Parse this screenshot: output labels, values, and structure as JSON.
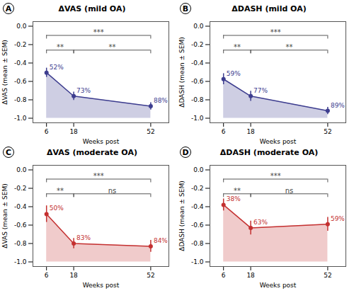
{
  "chart_data": [
    {
      "type": "line",
      "panel_label": "A",
      "title": "ΔVAS (mild OA)",
      "xlabel": "Weeks post",
      "ylabel": "ΔVAS (mean ± SEM)",
      "color": "#3d3d8f",
      "x": [
        6,
        18,
        52
      ],
      "values": [
        -0.505,
        -0.76,
        -0.87
      ],
      "errors": [
        0.05,
        0.045,
        0.04
      ],
      "point_labels": [
        "52%",
        "73%",
        "88%"
      ],
      "baseline": -1.0,
      "annotations": [
        {
          "x1": 6,
          "x2": 18,
          "y": -0.26,
          "text": "**"
        },
        {
          "x1": 18,
          "x2": 52,
          "y": -0.26,
          "text": "**"
        },
        {
          "x1": 6,
          "x2": 52,
          "y": -0.1,
          "text": "***"
        }
      ],
      "xlim": [
        0,
        60
      ],
      "xticks": [
        6,
        18,
        52
      ],
      "ylim": [
        -1.05,
        0.05
      ],
      "yticks": [
        {
          "value": 0.0,
          "label": "0.0"
        },
        {
          "value": -0.2,
          "label": "-0.2"
        },
        {
          "value": -0.4,
          "label": "-0.4"
        },
        {
          "value": -0.6,
          "label": "-0.6"
        },
        {
          "value": -0.8,
          "label": "-0.8"
        },
        {
          "value": -1.0,
          "label": "-1.0"
        }
      ]
    },
    {
      "type": "line",
      "panel_label": "B",
      "title": "ΔDASH (mild OA)",
      "xlabel": "Weeks post",
      "ylabel": "ΔDASH (mean ± SEM)",
      "color": "#3d3d8f",
      "x": [
        6,
        18,
        52
      ],
      "values": [
        -0.575,
        -0.76,
        -0.92
      ],
      "errors": [
        0.06,
        0.055,
        0.04
      ],
      "point_labels": [
        "59%",
        "77%",
        "89%"
      ],
      "baseline": -1.0,
      "annotations": [
        {
          "x1": 6,
          "x2": 18,
          "y": -0.26,
          "text": "**"
        },
        {
          "x1": 18,
          "x2": 52,
          "y": -0.26,
          "text": "**"
        },
        {
          "x1": 6,
          "x2": 52,
          "y": -0.1,
          "text": "***"
        }
      ],
      "xlim": [
        0,
        60
      ],
      "xticks": [
        6,
        18,
        52
      ],
      "ylim": [
        -1.05,
        0.05
      ],
      "yticks": [
        {
          "value": 0.0,
          "label": "0.0"
        },
        {
          "value": -0.2,
          "label": "-0.2"
        },
        {
          "value": -0.4,
          "label": "-0.4"
        },
        {
          "value": -0.6,
          "label": "-0.6"
        },
        {
          "value": -0.8,
          "label": "-0.8"
        },
        {
          "value": -1.0,
          "label": "-1.0"
        }
      ]
    },
    {
      "type": "line",
      "panel_label": "C",
      "title": "ΔVAS (moderate OA)",
      "xlabel": "Weeks post",
      "ylabel": "ΔVAS (mean ± SEM)",
      "color": "#c43030",
      "x": [
        6,
        18,
        52
      ],
      "values": [
        -0.48,
        -0.8,
        -0.83
      ],
      "errors": [
        0.09,
        0.055,
        0.065
      ],
      "point_labels": [
        "50%",
        "83%",
        "84%"
      ],
      "baseline": -1.0,
      "annotations": [
        {
          "x1": 6,
          "x2": 18,
          "y": -0.26,
          "text": "**"
        },
        {
          "x1": 18,
          "x2": 52,
          "y": -0.26,
          "text": "ns"
        },
        {
          "x1": 6,
          "x2": 52,
          "y": -0.1,
          "text": "***"
        }
      ],
      "xlim": [
        0,
        60
      ],
      "xticks": [
        6,
        18,
        52
      ],
      "ylim": [
        -1.05,
        0.05
      ],
      "yticks": [
        {
          "value": 0.0,
          "label": "0.0"
        },
        {
          "value": -0.2,
          "label": "-0.2"
        },
        {
          "value": -0.4,
          "label": "-0.4"
        },
        {
          "value": -0.6,
          "label": "-0.6"
        },
        {
          "value": -0.8,
          "label": "-0.8"
        },
        {
          "value": -1.0,
          "label": "-1.0"
        }
      ]
    },
    {
      "type": "line",
      "panel_label": "D",
      "title": "ΔDASH (moderate OA)",
      "xlabel": "Weeks post",
      "ylabel": "ΔDASH (mean ± SEM)",
      "color": "#c43030",
      "x": [
        6,
        18,
        52
      ],
      "values": [
        -0.38,
        -0.63,
        -0.59
      ],
      "errors": [
        0.065,
        0.075,
        0.075
      ],
      "point_labels": [
        "38%",
        "63%",
        "59%"
      ],
      "baseline": -1.0,
      "annotations": [
        {
          "x1": 6,
          "x2": 18,
          "y": -0.26,
          "text": "**"
        },
        {
          "x1": 18,
          "x2": 52,
          "y": -0.26,
          "text": "ns"
        },
        {
          "x1": 6,
          "x2": 52,
          "y": -0.1,
          "text": "***"
        }
      ],
      "xlim": [
        0,
        60
      ],
      "xticks": [
        6,
        18,
        52
      ],
      "ylim": [
        -1.05,
        0.05
      ],
      "yticks": [
        {
          "value": 0.0,
          "label": "0.0"
        },
        {
          "value": -0.2,
          "label": "-0.2"
        },
        {
          "value": -0.4,
          "label": "-0.4"
        },
        {
          "value": -0.6,
          "label": "-0.6"
        },
        {
          "value": -0.8,
          "label": "-0.8"
        },
        {
          "value": -1.0,
          "label": "-1.0"
        }
      ]
    }
  ]
}
